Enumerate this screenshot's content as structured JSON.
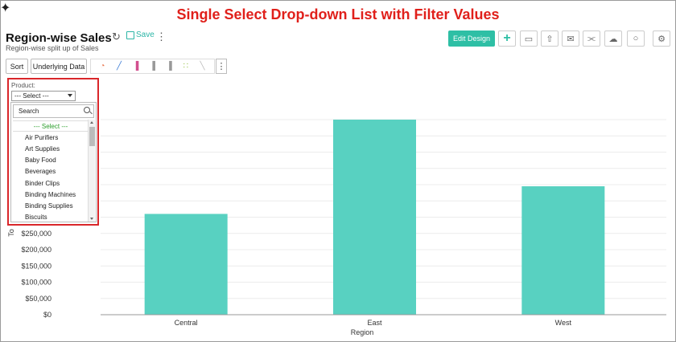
{
  "banner": "Single Select Drop-down List with Filter Values",
  "header": {
    "title": "Region-wise Sales",
    "subtitle": "Region-wise split up of Sales",
    "save_label": "Save",
    "edit_design_label": "Edit Design"
  },
  "toolbar": {
    "sort_label": "Sort",
    "underlying_label": "Underlying Data"
  },
  "filter": {
    "label": "Product:",
    "selected": "--- Select ---",
    "search_placeholder": "Search",
    "options": [
      "--- Select ---",
      "Air Purifiers",
      "Art Supplies",
      "Baby Food",
      "Beverages",
      "Binder Clips",
      "Binding Machines",
      "Binding Supplies",
      "Biscuits"
    ]
  },
  "chart_data": {
    "type": "bar",
    "categories": [
      "Central",
      "East",
      "West"
    ],
    "values": [
      310000,
      600000,
      395000
    ],
    "xlabel": "Region",
    "ylabel": "To",
    "ylim": [
      0,
      600000
    ],
    "yticks": [
      0,
      50000,
      100000,
      150000,
      200000,
      250000
    ],
    "ytick_labels": [
      "$0",
      "$50,000",
      "$100,000",
      "$150,000",
      "$200,000",
      "$250,000"
    ],
    "bar_color": "#58d1c1",
    "grid": true
  },
  "colors": {
    "accent": "#2ebfa5",
    "highlight_border": "#d9262a",
    "banner": "#e0201b"
  }
}
